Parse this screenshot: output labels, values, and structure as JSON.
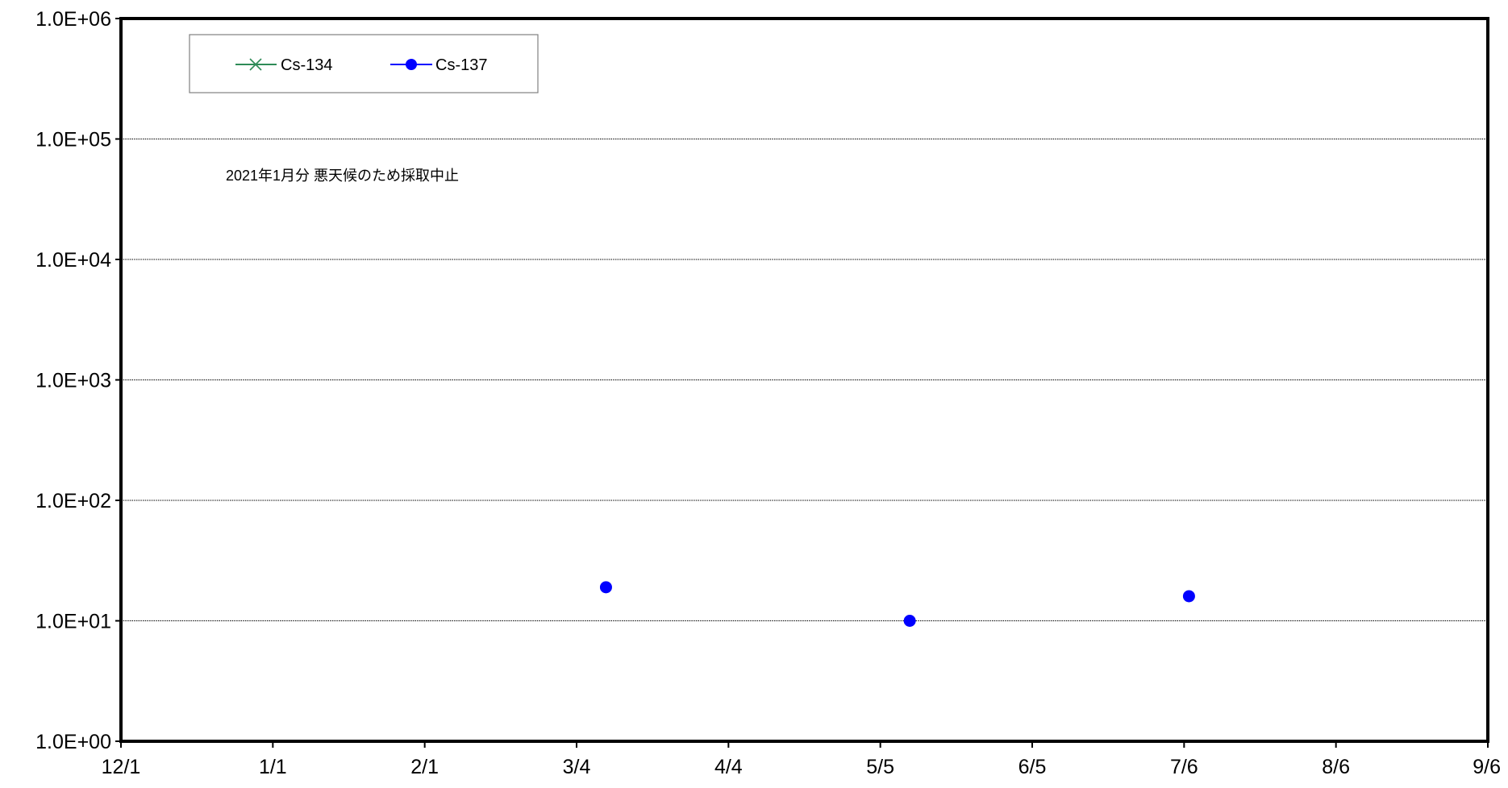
{
  "chart_data": {
    "type": "scatter",
    "title": "",
    "xlabel": "",
    "ylabel": "",
    "y_scale": "log",
    "ylim": [
      1,
      1000000
    ],
    "y_tick_labels": [
      "1.0E+00",
      "1.0E+01",
      "1.0E+02",
      "1.0E+03",
      "1.0E+04",
      "1.0E+05",
      "1.0E+06"
    ],
    "x_tick_labels": [
      "12/1",
      "1/1",
      "2/1",
      "3/4",
      "4/4",
      "5/5",
      "6/5",
      "7/6",
      "8/6",
      "9/6"
    ],
    "grid": "horizontal",
    "legend_position": "top-left",
    "annotation": "2021年1月分 悪天候のため採取中止",
    "series": [
      {
        "name": "Cs-134",
        "color": "#2e8b57",
        "marker": "x",
        "points": []
      },
      {
        "name": "Cs-137",
        "color": "#0000ff",
        "marker": "circle",
        "points": [
          {
            "x": "3/10",
            "y": 19
          },
          {
            "x": "5/11",
            "y": 10
          },
          {
            "x": "7/7",
            "y": 16
          }
        ]
      }
    ]
  }
}
